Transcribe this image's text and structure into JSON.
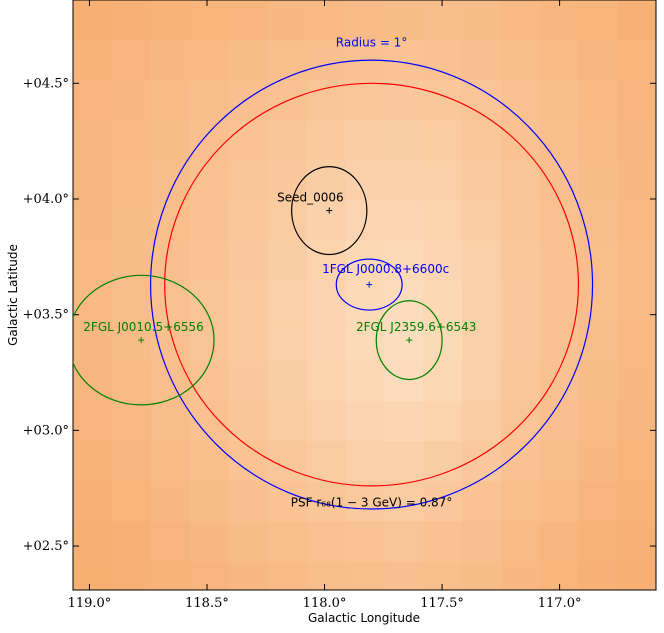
{
  "chart_data": {
    "type": "heatmap",
    "title": "",
    "xlabel": "Galactic Longitude",
    "ylabel": "Galactic Latitude",
    "xlim": [
      119.07,
      116.59
    ],
    "ylim": [
      2.31,
      4.86
    ],
    "grid": false,
    "x_ticks": [
      {
        "value": 119.0,
        "label": "119.0°"
      },
      {
        "value": 118.5,
        "label": "118.5°"
      },
      {
        "value": 118.0,
        "label": "118.0°"
      },
      {
        "value": 117.5,
        "label": "117.5°"
      },
      {
        "value": 117.0,
        "label": "117.0°"
      }
    ],
    "y_ticks": [
      {
        "value": 2.5,
        "label": "+02.5°"
      },
      {
        "value": 3.0,
        "label": "+03.0°"
      },
      {
        "value": 3.5,
        "label": "+03.5°"
      },
      {
        "value": 4.0,
        "label": "+04.0°"
      },
      {
        "value": 4.5,
        "label": "+04.5°"
      }
    ],
    "colormap": {
      "low": "#f5a25e",
      "high": "#fde2c6"
    },
    "heatmap": {
      "l_start": 119.07,
      "l_step": -0.1655,
      "b_start": 4.86,
      "b_step": -0.1733,
      "cols": 15,
      "rows": 15,
      "values": [
        [
          0.2,
          0.24,
          0.26,
          0.28,
          0.3,
          0.34,
          0.36,
          0.38,
          0.4,
          0.42,
          0.4,
          0.36,
          0.32,
          0.28,
          0.24
        ],
        [
          0.26,
          0.3,
          0.34,
          0.36,
          0.4,
          0.44,
          0.46,
          0.5,
          0.52,
          0.5,
          0.46,
          0.42,
          0.38,
          0.32,
          0.28
        ],
        [
          0.3,
          0.34,
          0.38,
          0.42,
          0.46,
          0.5,
          0.54,
          0.58,
          0.6,
          0.58,
          0.54,
          0.48,
          0.42,
          0.36,
          0.3
        ],
        [
          0.32,
          0.36,
          0.4,
          0.46,
          0.52,
          0.56,
          0.62,
          0.66,
          0.68,
          0.64,
          0.58,
          0.5,
          0.44,
          0.38,
          0.32
        ],
        [
          0.32,
          0.38,
          0.42,
          0.48,
          0.54,
          0.6,
          0.68,
          0.74,
          0.74,
          0.7,
          0.62,
          0.54,
          0.46,
          0.4,
          0.34
        ],
        [
          0.34,
          0.4,
          0.44,
          0.5,
          0.58,
          0.64,
          0.74,
          0.8,
          0.8,
          0.76,
          0.66,
          0.56,
          0.48,
          0.42,
          0.36
        ],
        [
          0.36,
          0.4,
          0.46,
          0.52,
          0.6,
          0.68,
          0.76,
          0.84,
          0.86,
          0.8,
          0.7,
          0.58,
          0.5,
          0.44,
          0.38
        ],
        [
          0.36,
          0.42,
          0.48,
          0.54,
          0.62,
          0.7,
          0.78,
          0.86,
          0.9,
          0.84,
          0.72,
          0.6,
          0.5,
          0.44,
          0.38
        ],
        [
          0.34,
          0.4,
          0.46,
          0.54,
          0.62,
          0.7,
          0.78,
          0.86,
          0.92,
          0.86,
          0.72,
          0.6,
          0.5,
          0.42,
          0.36
        ],
        [
          0.32,
          0.38,
          0.44,
          0.52,
          0.6,
          0.68,
          0.76,
          0.84,
          0.9,
          0.84,
          0.7,
          0.58,
          0.48,
          0.4,
          0.34
        ],
        [
          0.3,
          0.36,
          0.42,
          0.48,
          0.56,
          0.64,
          0.72,
          0.78,
          0.82,
          0.76,
          0.66,
          0.54,
          0.46,
          0.38,
          0.32
        ],
        [
          0.26,
          0.32,
          0.38,
          0.44,
          0.52,
          0.58,
          0.64,
          0.7,
          0.72,
          0.68,
          0.6,
          0.5,
          0.42,
          0.34,
          0.28
        ],
        [
          0.24,
          0.28,
          0.34,
          0.4,
          0.46,
          0.52,
          0.56,
          0.62,
          0.64,
          0.6,
          0.52,
          0.44,
          0.38,
          0.3,
          0.26
        ],
        [
          0.2,
          0.24,
          0.3,
          0.34,
          0.4,
          0.44,
          0.48,
          0.52,
          0.54,
          0.5,
          0.46,
          0.38,
          0.32,
          0.26,
          0.22
        ],
        [
          0.18,
          0.22,
          0.26,
          0.3,
          0.34,
          0.38,
          0.42,
          0.44,
          0.46,
          0.44,
          0.4,
          0.34,
          0.28,
          0.24,
          0.2
        ]
      ]
    },
    "circles": [
      {
        "center_l": 117.8,
        "center_b": 3.63,
        "radius_l": 0.94,
        "radius_b": 0.97,
        "color": "#0000ff",
        "label": "Radius = 1°",
        "label_l": 117.8,
        "label_b": 4.66
      },
      {
        "center_l": 117.8,
        "center_b": 3.63,
        "radius_l": 0.88,
        "radius_b": 0.87,
        "color": "#ff0000",
        "label": "PSF r₆₈(1 − 3 GeV) = 0.87°",
        "label_l": 117.8,
        "label_b": 2.67
      }
    ],
    "sources": [
      {
        "name": "Seed_0006",
        "l": 117.98,
        "b": 3.95,
        "ell_rl": 0.16,
        "ell_rb": 0.19,
        "color": "#000000",
        "label_l": 118.06,
        "label_b": 3.99
      },
      {
        "name": "1FGL J0000.8+6600c",
        "l": 117.81,
        "b": 3.63,
        "ell_rl": 0.14,
        "ell_rb": 0.11,
        "color": "#0000ff",
        "label_l": 117.74,
        "label_b": 3.68
      },
      {
        "name": "2FGL J2359.6+6543",
        "l": 117.64,
        "b": 3.39,
        "ell_rl": 0.14,
        "ell_rb": 0.17,
        "color": "#008000",
        "label_l": 117.61,
        "label_b": 3.43
      },
      {
        "name": "2FGL J0010.5+6556",
        "l": 118.78,
        "b": 3.39,
        "ell_rl": 0.31,
        "ell_rb": 0.28,
        "color": "#008000",
        "label_l": 118.77,
        "label_b": 3.43
      }
    ]
  }
}
